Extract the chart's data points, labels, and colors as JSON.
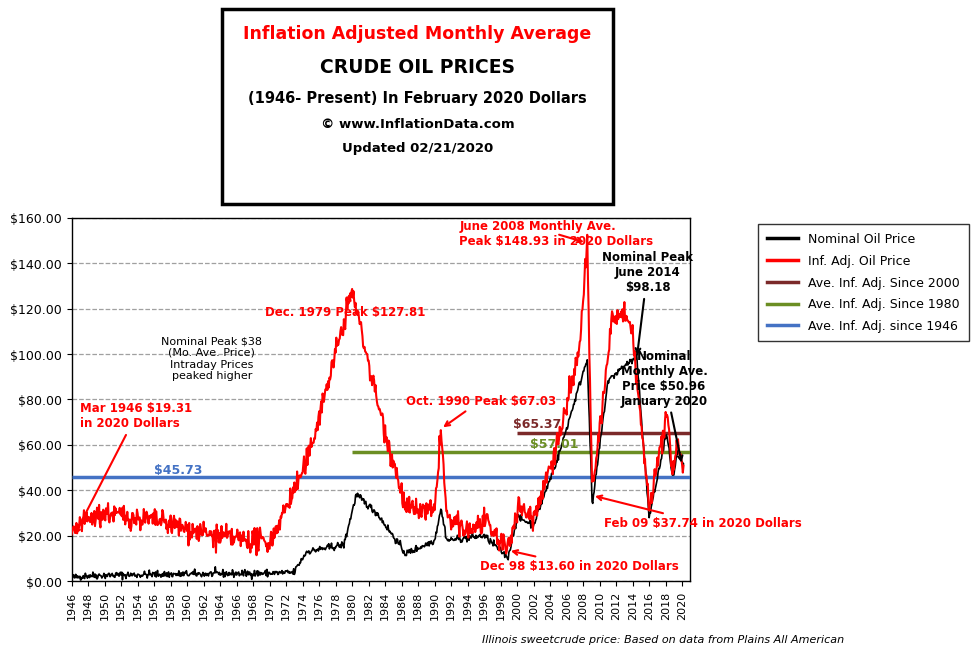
{
  "title_line1": "Inflation Adjusted Monthly Average",
  "title_line2": "CRUDE OIL PRICES",
  "title_line3": "(1946- Present) In February 2020 Dollars",
  "title_line4": "© www.InflationData.com",
  "title_line5": "Updated 02/21/2020",
  "subtitle_footer": "Illinois sweetcrude price: Based on data from Plains All American",
  "ylim": [
    0,
    160
  ],
  "xlim_start": 1946,
  "xlim_end": 2021,
  "avg_since_2000": 65.37,
  "avg_since_2000_xstart": 2000,
  "avg_since_1980": 57.01,
  "avg_since_1980_xstart": 1980,
  "avg_since_1946": 45.73,
  "avg_since_1946_xstart": 1946,
  "color_nominal": "#000000",
  "color_inf_adj": "#FF0000",
  "color_avg_2000": "#7B2929",
  "color_avg_1980": "#6B8E23",
  "color_avg_1946": "#4472C4",
  "legend_entries": [
    "Nominal Oil Price",
    "Inf. Adj. Oil Price",
    "Ave. Inf. Adj. Since 2000",
    "Ave. Inf. Adj. Since 1980",
    "Ave. Inf. Adj. since 1946"
  ]
}
